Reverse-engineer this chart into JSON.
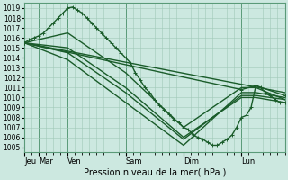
{
  "xlabel": "Pression niveau de la mer( hPa )",
  "bg_color": "#cce8e0",
  "grid_color": "#a0c8b8",
  "line_color": "#1a5c2a",
  "ylim": [
    1004.5,
    1019.5
  ],
  "yticks": [
    1005,
    1006,
    1007,
    1008,
    1009,
    1010,
    1011,
    1012,
    1013,
    1014,
    1015,
    1016,
    1017,
    1018,
    1019
  ],
  "day_labels": [
    "Jeu",
    "Mar",
    "Ven",
    "Sam",
    "Dim",
    "Lun"
  ],
  "day_positions": [
    0,
    12,
    36,
    84,
    132,
    180
  ],
  "xlim": [
    0,
    216
  ],
  "lines": [
    {
      "x": [
        0,
        4,
        8,
        12,
        16,
        20,
        24,
        28,
        32,
        36,
        40,
        44,
        48,
        52,
        56,
        60,
        64,
        68,
        72,
        76,
        80,
        84,
        88,
        92,
        96,
        100,
        104,
        108,
        112,
        116,
        120,
        124,
        128,
        132,
        136,
        140,
        144,
        148,
        152,
        156,
        160,
        164,
        168,
        172,
        176,
        180,
        184,
        188,
        192,
        196,
        200,
        204,
        208,
        212,
        216
      ],
      "y": [
        1015.5,
        1015.8,
        1016.0,
        1016.2,
        1016.5,
        1017.0,
        1017.5,
        1018.0,
        1018.5,
        1019.0,
        1019.1,
        1018.8,
        1018.5,
        1018.0,
        1017.5,
        1017.0,
        1016.5,
        1016.0,
        1015.5,
        1015.0,
        1014.5,
        1014.0,
        1013.5,
        1012.5,
        1011.8,
        1011.0,
        1010.5,
        1009.8,
        1009.2,
        1008.8,
        1008.3,
        1007.8,
        1007.5,
        1007.0,
        1006.8,
        1006.2,
        1006.0,
        1005.8,
        1005.5,
        1005.2,
        1005.2,
        1005.5,
        1005.8,
        1006.2,
        1007.0,
        1008.0,
        1008.2,
        1009.0,
        1011.2,
        1011.0,
        1010.5,
        1010.2,
        1009.8,
        1009.5,
        1009.5
      ],
      "marker": "+",
      "lw": 1.0
    },
    {
      "x": [
        0,
        216
      ],
      "y": [
        1015.5,
        1010.5
      ],
      "marker": null,
      "lw": 1.0
    },
    {
      "x": [
        0,
        180,
        192,
        216
      ],
      "y": [
        1015.5,
        1010.8,
        1011.2,
        1010.2
      ],
      "marker": "+",
      "lw": 1.0
    },
    {
      "x": [
        0,
        36,
        84,
        132,
        180,
        192,
        216
      ],
      "y": [
        1015.5,
        1016.5,
        1012.5,
        1007.0,
        1011.0,
        1011.0,
        1009.8
      ],
      "marker": null,
      "lw": 1.0
    },
    {
      "x": [
        0,
        36,
        84,
        132,
        180,
        192,
        216
      ],
      "y": [
        1015.5,
        1015.0,
        1011.0,
        1006.0,
        1010.0,
        1010.0,
        1009.5
      ],
      "marker": null,
      "lw": 1.0
    },
    {
      "x": [
        0,
        36,
        84,
        132,
        180,
        192,
        216
      ],
      "y": [
        1015.5,
        1014.5,
        1010.5,
        1005.8,
        1010.2,
        1010.2,
        1009.8
      ],
      "marker": null,
      "lw": 1.0
    },
    {
      "x": [
        0,
        36,
        84,
        132,
        180,
        192,
        216
      ],
      "y": [
        1015.5,
        1013.8,
        1009.5,
        1005.2,
        1010.5,
        1010.5,
        1010.0
      ],
      "marker": null,
      "lw": 1.0
    }
  ],
  "markersize": 3,
  "linewidth": 0.8
}
